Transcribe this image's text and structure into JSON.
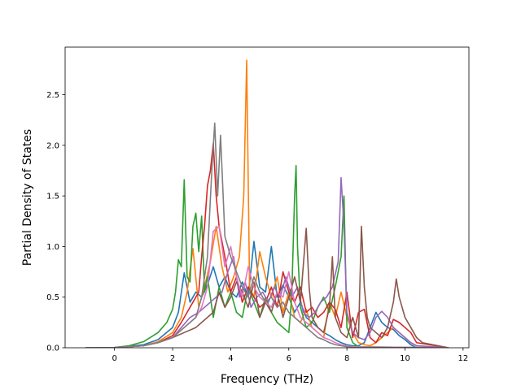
{
  "chart_data": {
    "type": "line",
    "title": "",
    "xlabel": "Frequency (THz)",
    "ylabel": "Partial Density of States",
    "xlim": [
      -1.7,
      12.2
    ],
    "ylim": [
      0,
      2.97
    ],
    "xticks": [
      0,
      2,
      4,
      6,
      8,
      10,
      12
    ],
    "yticks": [
      0.0,
      0.5,
      1.0,
      1.5,
      2.0,
      2.5
    ],
    "xtick_labels": [
      "0",
      "2",
      "4",
      "6",
      "8",
      "10",
      "12"
    ],
    "ytick_labels": [
      "0.0",
      "0.5",
      "1.0",
      "1.5",
      "2.0",
      "2.5"
    ],
    "grid": false,
    "legend": "none",
    "series": [
      {
        "color": "#1f77b4",
        "x": [
          -1.0,
          0,
          1.0,
          1.5,
          2.0,
          2.2,
          2.4,
          2.6,
          2.8,
          3.0,
          3.2,
          3.4,
          3.6,
          3.8,
          4.0,
          4.2,
          4.4,
          4.6,
          4.8,
          5.0,
          5.2,
          5.4,
          5.6,
          5.8,
          6.0,
          6.2,
          6.4,
          6.6,
          6.8,
          7.0,
          7.2,
          7.4,
          7.6,
          7.8,
          8.0,
          8.2,
          8.4,
          8.6,
          8.8,
          9.0,
          9.2,
          9.4,
          9.6,
          9.8,
          10.0,
          10.2,
          10.4,
          11.5
        ],
        "y": [
          0,
          0.003,
          0.03,
          0.08,
          0.2,
          0.35,
          0.74,
          0.45,
          0.55,
          0.5,
          0.62,
          0.8,
          0.6,
          0.7,
          0.55,
          0.5,
          0.65,
          0.5,
          1.05,
          0.6,
          0.55,
          1.0,
          0.5,
          0.62,
          0.5,
          0.35,
          0.45,
          0.3,
          0.25,
          0.2,
          0.15,
          0.12,
          0.08,
          0.05,
          0.03,
          0.02,
          0.02,
          0.05,
          0.2,
          0.35,
          0.25,
          0.2,
          0.18,
          0.12,
          0.08,
          0.03,
          0,
          0
        ]
      },
      {
        "color": "#ff7f0e",
        "x": [
          -1.0,
          0,
          1.0,
          1.5,
          2.0,
          2.3,
          2.5,
          2.7,
          2.9,
          3.1,
          3.3,
          3.5,
          3.7,
          3.9,
          4.1,
          4.3,
          4.45,
          4.55,
          4.65,
          4.8,
          5.0,
          5.2,
          5.4,
          5.6,
          5.8,
          6.0,
          6.2,
          6.4,
          6.6,
          6.8,
          7.0,
          7.2,
          7.4,
          7.6,
          7.8,
          8.0,
          8.2,
          8.4,
          8.6,
          8.8,
          9.0,
          9.2,
          9.4,
          9.6,
          9.8,
          10.0,
          10.2,
          10.4,
          11.5
        ],
        "y": [
          0,
          0.002,
          0.02,
          0.06,
          0.15,
          0.3,
          0.55,
          0.98,
          0.4,
          0.6,
          0.85,
          1.2,
          0.8,
          0.55,
          0.7,
          0.9,
          1.5,
          2.84,
          0.6,
          0.5,
          0.95,
          0.7,
          0.5,
          0.7,
          0.35,
          0.55,
          0.3,
          0.25,
          0.38,
          0.2,
          0.15,
          0.1,
          0.45,
          0.3,
          0.55,
          0.3,
          0.15,
          0.05,
          0.03,
          0.02,
          0.05,
          0.1,
          0.15,
          0.2,
          0.15,
          0.1,
          0.05,
          0.02,
          0
        ]
      },
      {
        "color": "#2ca02c",
        "x": [
          -1.0,
          0,
          0.5,
          1.0,
          1.5,
          1.8,
          2.0,
          2.1,
          2.2,
          2.3,
          2.4,
          2.5,
          2.6,
          2.7,
          2.8,
          2.9,
          3.0,
          3.1,
          3.2,
          3.3,
          3.4,
          3.6,
          3.8,
          4.0,
          4.2,
          4.4,
          4.6,
          4.8,
          5.0,
          5.2,
          5.4,
          5.6,
          5.8,
          6.0,
          6.1,
          6.2,
          6.25,
          6.3,
          6.4,
          6.5,
          6.6,
          6.8,
          7.0,
          7.2,
          7.4,
          7.6,
          7.8,
          7.9,
          8.0,
          8.2,
          8.4,
          11.5
        ],
        "y": [
          0,
          0.003,
          0.02,
          0.06,
          0.15,
          0.25,
          0.38,
          0.55,
          0.87,
          0.8,
          1.66,
          0.7,
          0.65,
          1.2,
          1.33,
          0.95,
          1.3,
          0.55,
          0.7,
          0.5,
          0.3,
          0.6,
          0.4,
          0.55,
          0.35,
          0.3,
          0.6,
          0.45,
          0.3,
          0.5,
          0.35,
          0.25,
          0.2,
          0.15,
          0.5,
          1.5,
          1.8,
          1.0,
          0.4,
          0.3,
          0.2,
          0.25,
          0.4,
          0.5,
          0.35,
          0.6,
          0.9,
          1.5,
          0.2,
          0.05,
          0.01,
          0
        ]
      },
      {
        "color": "#d62728",
        "x": [
          -1.0,
          0,
          1.0,
          1.5,
          2.0,
          2.3,
          2.5,
          2.7,
          2.9,
          3.0,
          3.1,
          3.2,
          3.3,
          3.4,
          3.5,
          3.6,
          3.8,
          4.0,
          4.2,
          4.4,
          4.6,
          4.8,
          5.0,
          5.2,
          5.4,
          5.6,
          5.8,
          6.0,
          6.2,
          6.4,
          6.6,
          6.8,
          7.0,
          7.2,
          7.4,
          7.6,
          7.8,
          8.0,
          8.2,
          8.4,
          8.6,
          8.8,
          9.0,
          9.2,
          9.4,
          9.6,
          9.8,
          10.0,
          10.2,
          10.4,
          11.5
        ],
        "y": [
          0,
          0.002,
          0.02,
          0.05,
          0.12,
          0.25,
          0.35,
          0.45,
          0.55,
          0.9,
          1.2,
          1.6,
          1.75,
          2.02,
          1.5,
          1.2,
          0.9,
          0.55,
          0.7,
          0.45,
          0.6,
          0.5,
          0.4,
          0.45,
          0.6,
          0.4,
          0.75,
          0.55,
          0.45,
          0.6,
          0.35,
          0.4,
          0.3,
          0.35,
          0.45,
          0.38,
          0.2,
          0.55,
          0.1,
          0.35,
          0.38,
          0.1,
          0.05,
          0.15,
          0.12,
          0.28,
          0.25,
          0.2,
          0.15,
          0.05,
          0
        ]
      },
      {
        "color": "#9467bd",
        "x": [
          -1.0,
          0,
          1.0,
          1.5,
          2.0,
          2.3,
          2.6,
          2.9,
          3.1,
          3.3,
          3.5,
          3.7,
          3.9,
          4.1,
          4.3,
          4.5,
          4.7,
          4.9,
          5.1,
          5.3,
          5.5,
          5.7,
          5.9,
          6.1,
          6.3,
          6.5,
          6.7,
          6.9,
          7.1,
          7.3,
          7.5,
          7.7,
          7.8,
          7.9,
          8.0,
          8.2,
          8.4,
          8.6,
          8.8,
          9.0,
          9.2,
          9.4,
          9.6,
          9.8,
          10.0,
          10.2,
          10.4,
          11.5
        ],
        "y": [
          0,
          0.002,
          0.02,
          0.05,
          0.1,
          0.2,
          0.3,
          0.35,
          0.4,
          0.45,
          0.5,
          0.55,
          0.75,
          0.9,
          0.5,
          0.65,
          0.4,
          0.5,
          0.55,
          0.45,
          0.6,
          0.5,
          0.7,
          0.5,
          0.6,
          0.35,
          0.3,
          0.35,
          0.45,
          0.5,
          0.6,
          0.85,
          1.68,
          1.2,
          0.35,
          0.15,
          0.1,
          0.08,
          0.15,
          0.3,
          0.36,
          0.3,
          0.2,
          0.15,
          0.1,
          0.05,
          0.02,
          0
        ]
      },
      {
        "color": "#8c564b",
        "x": [
          -1.0,
          0,
          1.0,
          1.5,
          2.0,
          2.4,
          2.8,
          3.0,
          3.2,
          3.4,
          3.6,
          3.8,
          4.0,
          4.2,
          4.4,
          4.6,
          4.8,
          5.0,
          5.2,
          5.4,
          5.6,
          5.8,
          6.0,
          6.2,
          6.4,
          6.6,
          6.7,
          6.8,
          7.0,
          7.2,
          7.4,
          7.5,
          7.6,
          7.8,
          8.0,
          8.2,
          8.4,
          8.5,
          8.6,
          8.7,
          8.8,
          9.0,
          9.2,
          9.4,
          9.6,
          9.7,
          9.8,
          10.0,
          10.2,
          10.4,
          10.6,
          11.5
        ],
        "y": [
          0,
          0.002,
          0.02,
          0.05,
          0.1,
          0.15,
          0.2,
          0.25,
          0.3,
          0.35,
          0.55,
          0.4,
          0.5,
          0.65,
          0.55,
          0.4,
          0.65,
          0.3,
          0.45,
          0.35,
          0.55,
          0.3,
          0.5,
          0.7,
          0.45,
          1.18,
          0.6,
          0.3,
          0.2,
          0.15,
          0.4,
          0.9,
          0.3,
          0.15,
          0.1,
          0.3,
          0.1,
          1.2,
          0.6,
          0.3,
          0.2,
          0.15,
          0.1,
          0.2,
          0.45,
          0.68,
          0.5,
          0.3,
          0.2,
          0.1,
          0.05,
          0
        ]
      },
      {
        "color": "#e377c2",
        "x": [
          -1.0,
          0,
          1.0,
          1.5,
          2.0,
          2.4,
          2.8,
          3.0,
          3.2,
          3.4,
          3.6,
          3.8,
          4.0,
          4.2,
          4.4,
          4.6,
          4.8,
          5.0,
          5.2,
          5.4,
          5.6,
          5.8,
          6.0,
          6.2,
          6.4,
          6.6,
          6.8,
          7.0,
          7.2,
          7.4,
          7.6,
          7.8,
          8.0,
          8.2,
          11.5
        ],
        "y": [
          0,
          0.002,
          0.02,
          0.05,
          0.1,
          0.2,
          0.3,
          0.4,
          0.6,
          1.15,
          1.2,
          0.8,
          1.0,
          0.7,
          0.5,
          0.8,
          0.6,
          0.5,
          0.45,
          0.4,
          0.55,
          0.5,
          0.75,
          0.45,
          0.3,
          0.25,
          0.2,
          0.15,
          0.1,
          0.08,
          0.05,
          0.03,
          0.02,
          0.01,
          0
        ]
      },
      {
        "color": "#7f7f7f",
        "x": [
          -1.0,
          0,
          1.0,
          1.5,
          2.0,
          2.4,
          2.8,
          3.0,
          3.2,
          3.35,
          3.45,
          3.55,
          3.65,
          3.8,
          4.0,
          4.2,
          4.4,
          4.6,
          4.8,
          5.0,
          5.2,
          5.4,
          5.6,
          5.8,
          6.0,
          6.2,
          6.4,
          6.6,
          6.8,
          7.0,
          7.2,
          7.4,
          7.6,
          7.8,
          8.0,
          8.2,
          11.5
        ],
        "y": [
          0,
          0.002,
          0.02,
          0.05,
          0.1,
          0.2,
          0.3,
          0.5,
          0.9,
          1.75,
          2.22,
          1.5,
          2.1,
          1.1,
          0.9,
          0.75,
          0.6,
          0.5,
          0.7,
          0.55,
          0.45,
          0.5,
          0.4,
          0.45,
          0.35,
          0.3,
          0.25,
          0.2,
          0.15,
          0.1,
          0.08,
          0.05,
          0.03,
          0.02,
          0.01,
          0.005,
          0
        ]
      }
    ]
  }
}
